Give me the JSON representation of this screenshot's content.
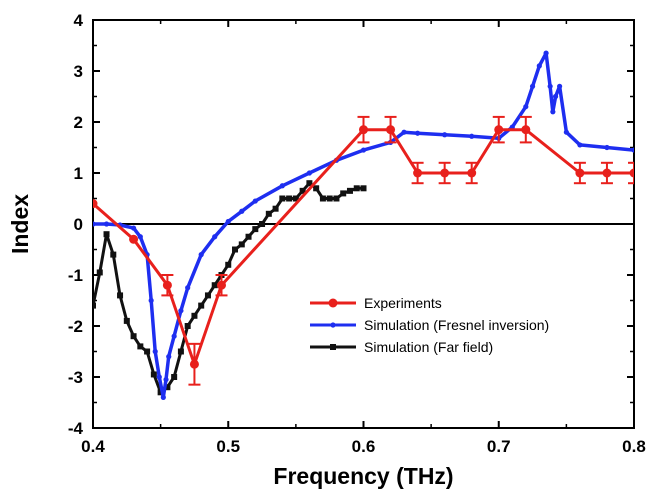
{
  "chart_data": {
    "type": "line",
    "xlabel": "Frequency (THz)",
    "ylabel": "Index",
    "xlim": [
      0.4,
      0.8
    ],
    "ylim": [
      -4,
      4
    ],
    "xticks": [
      "0.4",
      "0.5",
      "0.6",
      "0.7",
      "0.8"
    ],
    "yticks": [
      "-4",
      "-3",
      "-2",
      "-1",
      "0",
      "1",
      "2",
      "3",
      "4"
    ],
    "xtick_values": [
      0.4,
      0.5,
      0.6,
      0.7,
      0.8
    ],
    "ytick_values": [
      -4,
      -3,
      -2,
      -1,
      0,
      1,
      2,
      3,
      4
    ],
    "grid": false,
    "zero_line": 0,
    "legend": {
      "position": "bottom-right"
    },
    "series": [
      {
        "name": "Experiments",
        "color": "#e8201c",
        "marker": "circle",
        "errorbars": true,
        "x": [
          0.4,
          0.43,
          0.455,
          0.475,
          0.495,
          0.6,
          0.62,
          0.64,
          0.66,
          0.68,
          0.7,
          0.72,
          0.76,
          0.78,
          0.8
        ],
        "y": [
          0.4,
          -0.3,
          -1.2,
          -2.75,
          -1.2,
          1.85,
          1.85,
          1.0,
          1.0,
          1.0,
          1.85,
          1.85,
          1.0,
          1.0,
          1.0
        ],
        "err": [
          0,
          0,
          0.2,
          0.4,
          0.2,
          0.25,
          0.25,
          0.2,
          0.2,
          0.2,
          0.25,
          0.25,
          0.2,
          0.2,
          0.2
        ]
      },
      {
        "name": "Simulation (Fresnel inversion)",
        "color": "#1e2ef0",
        "marker": "diamond",
        "x": [
          0.4,
          0.41,
          0.42,
          0.43,
          0.435,
          0.44,
          0.443,
          0.446,
          0.449,
          0.452,
          0.454,
          0.456,
          0.46,
          0.465,
          0.47,
          0.48,
          0.49,
          0.5,
          0.51,
          0.52,
          0.54,
          0.56,
          0.58,
          0.6,
          0.62,
          0.63,
          0.64,
          0.66,
          0.68,
          0.7,
          0.71,
          0.72,
          0.725,
          0.73,
          0.735,
          0.738,
          0.74,
          0.742,
          0.745,
          0.75,
          0.76,
          0.78,
          0.8
        ],
        "y": [
          0,
          0,
          -0.02,
          -0.08,
          -0.25,
          -0.6,
          -1.5,
          -2.5,
          -3.0,
          -3.4,
          -3.05,
          -2.6,
          -2.2,
          -1.7,
          -1.25,
          -0.6,
          -0.25,
          0.05,
          0.25,
          0.45,
          0.75,
          1.0,
          1.25,
          1.45,
          1.6,
          1.8,
          1.78,
          1.75,
          1.72,
          1.68,
          1.9,
          2.3,
          2.7,
          3.1,
          3.35,
          2.7,
          2.2,
          2.5,
          2.7,
          1.8,
          1.55,
          1.5,
          1.45
        ]
      },
      {
        "name": "Simulation (Far field)",
        "color": "#111111",
        "marker": "square",
        "x": [
          0.4,
          0.405,
          0.41,
          0.415,
          0.42,
          0.425,
          0.43,
          0.435,
          0.44,
          0.445,
          0.45,
          0.455,
          0.46,
          0.465,
          0.47,
          0.475,
          0.48,
          0.485,
          0.49,
          0.495,
          0.5,
          0.505,
          0.51,
          0.515,
          0.52,
          0.525,
          0.53,
          0.535,
          0.54,
          0.545,
          0.55,
          0.555,
          0.56,
          0.565,
          0.57,
          0.575,
          0.58,
          0.585,
          0.59,
          0.595,
          0.6
        ],
        "y": [
          -1.6,
          -0.95,
          -0.2,
          -0.6,
          -1.4,
          -1.9,
          -2.2,
          -2.4,
          -2.5,
          -2.95,
          -3.3,
          -3.2,
          -3.0,
          -2.5,
          -2.0,
          -1.8,
          -1.6,
          -1.4,
          -1.2,
          -1.0,
          -0.8,
          -0.5,
          -0.4,
          -0.25,
          -0.1,
          0.0,
          0.2,
          0.3,
          0.5,
          0.5,
          0.5,
          0.65,
          0.8,
          0.7,
          0.5,
          0.5,
          0.5,
          0.6,
          0.65,
          0.7,
          0.7
        ]
      }
    ]
  }
}
